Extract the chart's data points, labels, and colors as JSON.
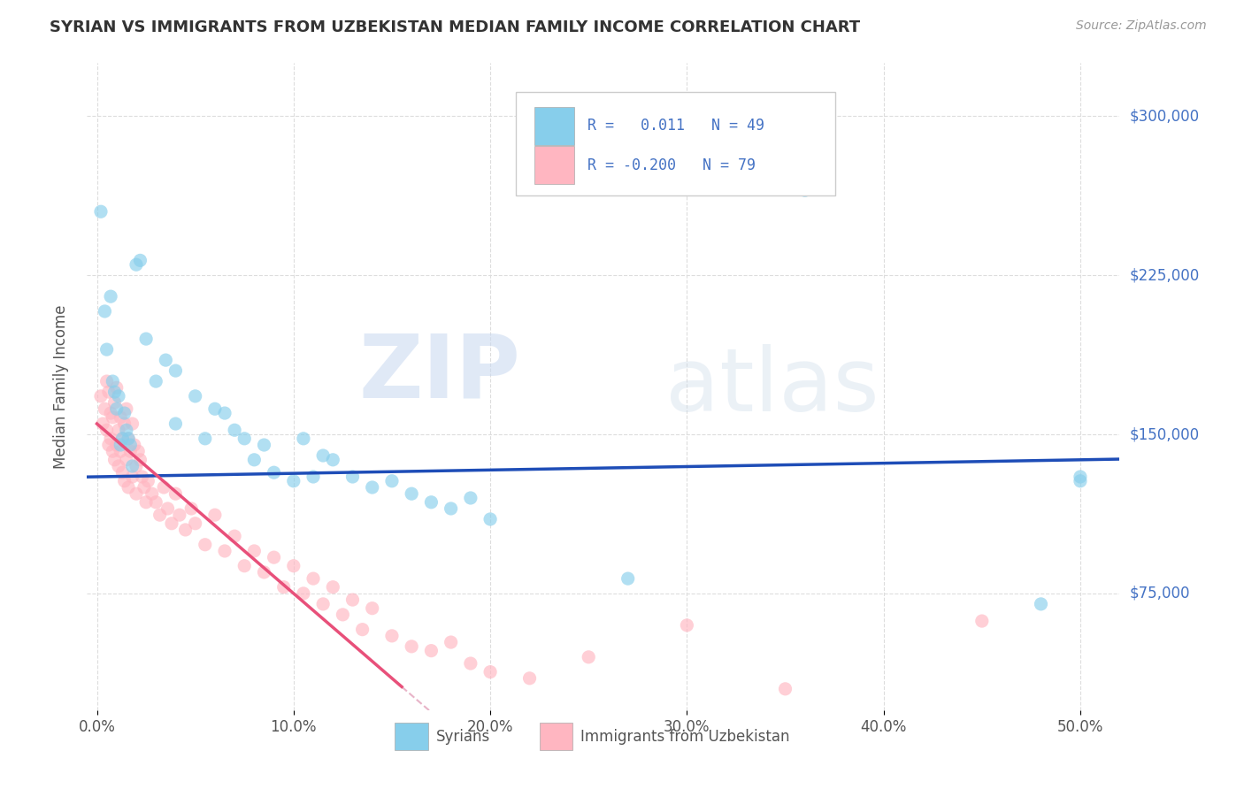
{
  "title": "SYRIAN VS IMMIGRANTS FROM UZBEKISTAN MEDIAN FAMILY INCOME CORRELATION CHART",
  "source": "Source: ZipAtlas.com",
  "xlabel_ticks": [
    "0.0%",
    "10.0%",
    "20.0%",
    "30.0%",
    "40.0%",
    "50.0%"
  ],
  "xlabel_tick_vals": [
    0.0,
    0.1,
    0.2,
    0.3,
    0.4,
    0.5
  ],
  "ylabel": "Median Family Income",
  "ylabel_ticks": [
    "$75,000",
    "$150,000",
    "$225,000",
    "$300,000"
  ],
  "ylabel_tick_vals": [
    75000,
    150000,
    225000,
    300000
  ],
  "xlim": [
    -0.005,
    0.52
  ],
  "ylim": [
    20000,
    325000
  ],
  "color_syrian": "#87CEEB",
  "color_uzbek": "#FFB6C1",
  "color_line_syrian": "#1E4DB7",
  "color_line_uzbek": "#E8507A",
  "color_trendline_uzbek_ext": "#E8B4C8",
  "watermark_zip": "ZIP",
  "watermark_atlas": "atlas",
  "background_color": "#FFFFFF",
  "grid_color": "#DDDDDD",
  "tick_color": "#4472C4",
  "syrian_x": [
    0.002,
    0.004,
    0.005,
    0.007,
    0.008,
    0.009,
    0.01,
    0.011,
    0.012,
    0.013,
    0.014,
    0.015,
    0.016,
    0.017,
    0.018,
    0.02,
    0.022,
    0.025,
    0.03,
    0.035,
    0.04,
    0.04,
    0.05,
    0.055,
    0.06,
    0.065,
    0.07,
    0.075,
    0.08,
    0.085,
    0.09,
    0.1,
    0.105,
    0.11,
    0.115,
    0.12,
    0.13,
    0.14,
    0.15,
    0.16,
    0.17,
    0.18,
    0.19,
    0.2,
    0.27,
    0.36,
    0.48,
    0.5,
    0.5
  ],
  "syrian_y": [
    255000,
    208000,
    190000,
    215000,
    175000,
    170000,
    162000,
    168000,
    145000,
    148000,
    160000,
    152000,
    148000,
    145000,
    135000,
    230000,
    232000,
    195000,
    175000,
    185000,
    180000,
    155000,
    168000,
    148000,
    162000,
    160000,
    152000,
    148000,
    138000,
    145000,
    132000,
    128000,
    148000,
    130000,
    140000,
    138000,
    130000,
    125000,
    128000,
    122000,
    118000,
    115000,
    120000,
    110000,
    82000,
    265000,
    70000,
    130000,
    128000
  ],
  "uzbek_x": [
    0.002,
    0.003,
    0.004,
    0.005,
    0.005,
    0.006,
    0.006,
    0.007,
    0.007,
    0.008,
    0.008,
    0.009,
    0.009,
    0.01,
    0.01,
    0.011,
    0.011,
    0.012,
    0.012,
    0.013,
    0.013,
    0.014,
    0.014,
    0.015,
    0.015,
    0.016,
    0.016,
    0.017,
    0.018,
    0.018,
    0.019,
    0.02,
    0.02,
    0.021,
    0.022,
    0.023,
    0.024,
    0.025,
    0.026,
    0.028,
    0.03,
    0.032,
    0.034,
    0.036,
    0.038,
    0.04,
    0.042,
    0.045,
    0.048,
    0.05,
    0.055,
    0.06,
    0.065,
    0.07,
    0.075,
    0.08,
    0.085,
    0.09,
    0.095,
    0.1,
    0.105,
    0.11,
    0.115,
    0.12,
    0.125,
    0.13,
    0.135,
    0.14,
    0.15,
    0.16,
    0.17,
    0.18,
    0.19,
    0.2,
    0.22,
    0.25,
    0.3,
    0.35,
    0.45
  ],
  "uzbek_y": [
    168000,
    155000,
    162000,
    175000,
    152000,
    170000,
    145000,
    160000,
    148000,
    158000,
    142000,
    165000,
    138000,
    172000,
    145000,
    152000,
    135000,
    158000,
    142000,
    148000,
    132000,
    155000,
    128000,
    162000,
    138000,
    148000,
    125000,
    142000,
    155000,
    130000,
    145000,
    135000,
    122000,
    142000,
    138000,
    130000,
    125000,
    118000,
    128000,
    122000,
    118000,
    112000,
    125000,
    115000,
    108000,
    122000,
    112000,
    105000,
    115000,
    108000,
    98000,
    112000,
    95000,
    102000,
    88000,
    95000,
    85000,
    92000,
    78000,
    88000,
    75000,
    82000,
    70000,
    78000,
    65000,
    72000,
    58000,
    68000,
    55000,
    50000,
    48000,
    52000,
    42000,
    38000,
    35000,
    45000,
    60000,
    30000,
    62000
  ]
}
